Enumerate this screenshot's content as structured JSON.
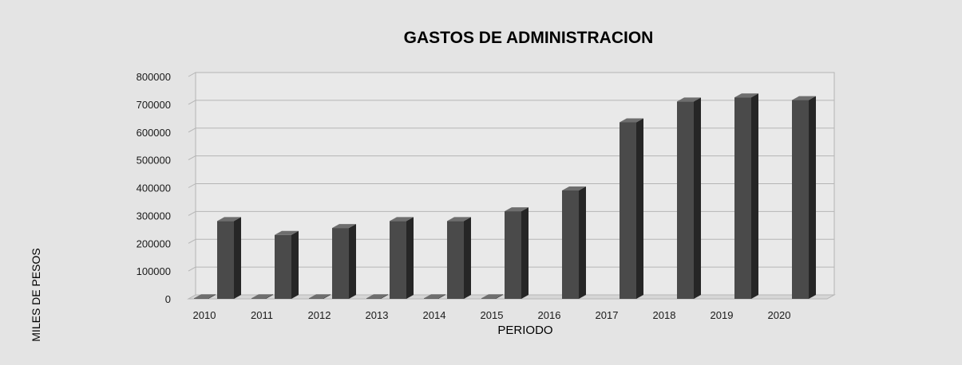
{
  "chart_data": {
    "type": "bar",
    "title": "GASTOS DE ADMINISTRACION",
    "xlabel": "PERIODO",
    "ylabel": "MILES DE PESOS",
    "categories": [
      "2010",
      "2011",
      "2012",
      "2013",
      "2014",
      "2015",
      "2016",
      "2017",
      "2018",
      "2019",
      "2020"
    ],
    "series": [
      {
        "values": [
          2000,
          2000,
          2000,
          2000,
          2000,
          2000,
          0,
          0,
          0,
          0,
          0
        ]
      },
      {
        "values": [
          280000,
          230000,
          255000,
          280000,
          280000,
          315000,
          390000,
          635000,
          710000,
          725000,
          715000
        ]
      }
    ],
    "ylim": [
      0,
      800000
    ],
    "yticks": [
      "0",
      "100000",
      "200000",
      "300000",
      "400000",
      "500000",
      "600000",
      "700000",
      "800000"
    ],
    "grid": true,
    "legend": "none",
    "colors": {
      "background": "#e4e4e4",
      "plot_wall": "#e9e9e9",
      "bar_front": "#4a4a4a",
      "bar_side": "#262626",
      "bar_top": "#6e6e6e",
      "grid": "#b5b5b5",
      "text": "#1a1a1a"
    }
  }
}
